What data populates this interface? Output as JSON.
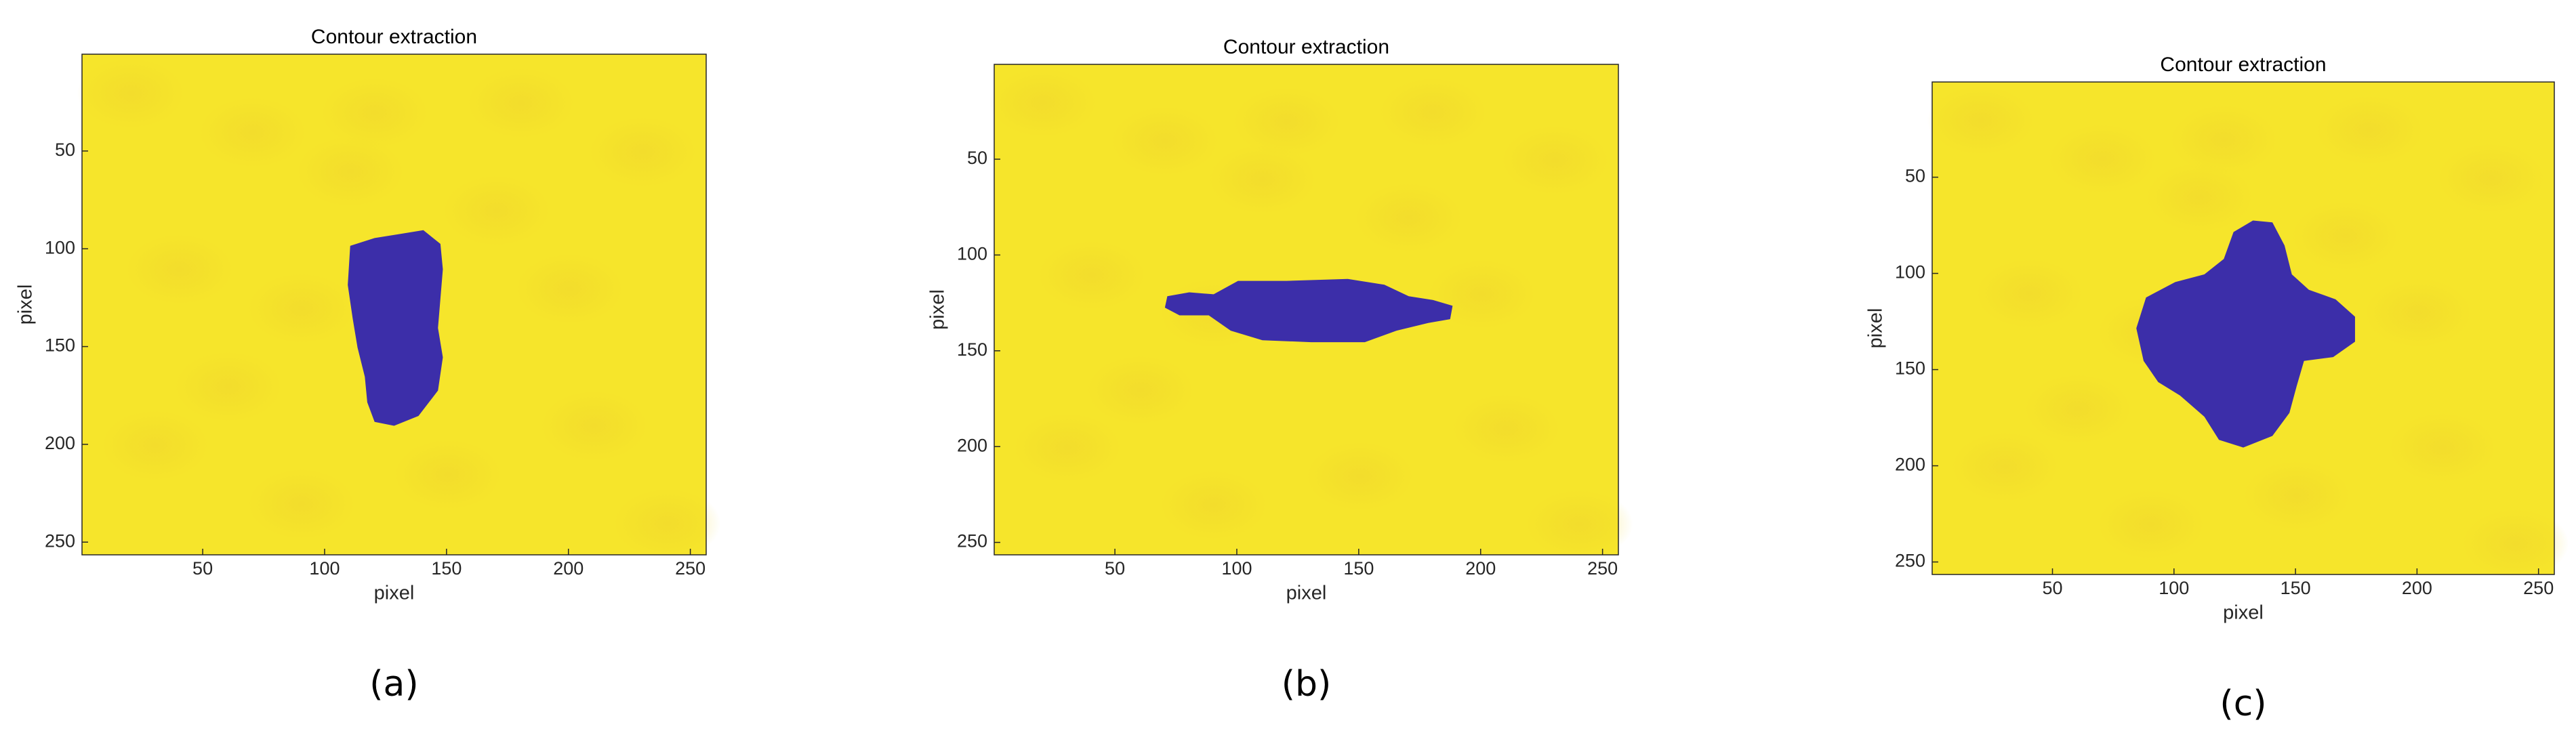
{
  "chart_data": [
    {
      "type": "image",
      "title": "Contour extraction",
      "xlabel": "pixel",
      "ylabel": "pixel",
      "caption": "(a)",
      "xlim": [
        0.5,
        256.5
      ],
      "ylim": [
        0.5,
        256.5
      ],
      "y_reversed": true,
      "xticks": [
        50,
        100,
        150,
        200,
        250
      ],
      "yticks": [
        50,
        100,
        150,
        200,
        250
      ]
    },
    {
      "type": "image",
      "title": "Contour extraction",
      "xlabel": "pixel",
      "ylabel": "pixel",
      "caption": "(b)",
      "xlim": [
        0.5,
        256.5
      ],
      "ylim": [
        0.5,
        256.5
      ],
      "y_reversed": true,
      "xticks": [
        50,
        100,
        150,
        200,
        250
      ],
      "yticks": [
        50,
        100,
        150,
        200,
        250
      ]
    },
    {
      "type": "image",
      "title": "Contour extraction",
      "xlabel": "pixel",
      "ylabel": "pixel",
      "caption": "(c)",
      "xlim": [
        0.5,
        256.5
      ],
      "ylim": [
        0.5,
        256.5
      ],
      "y_reversed": true,
      "xticks": [
        50,
        100,
        150,
        200,
        250
      ],
      "yticks": [
        50,
        100,
        150,
        200,
        250
      ]
    }
  ]
}
